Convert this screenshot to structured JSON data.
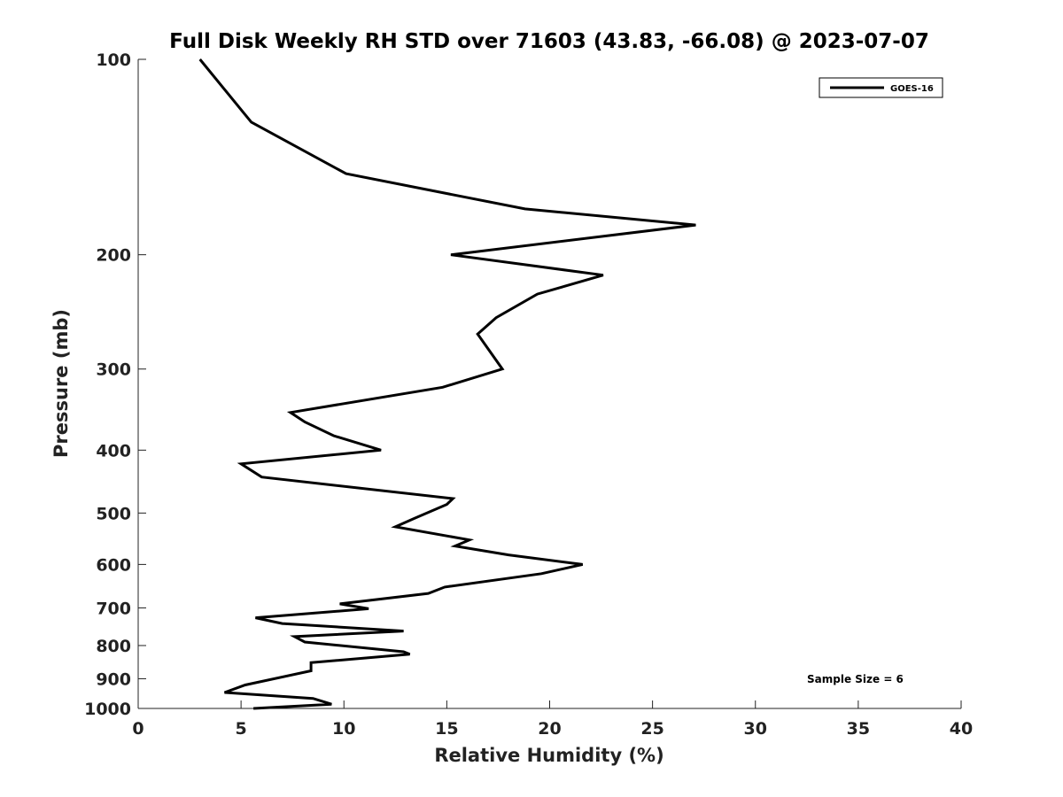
{
  "chart_data": {
    "type": "line",
    "title": "Full Disk Weekly RH STD over 71603 (43.83, -66.08) @ 2023-07-07",
    "xlabel": "Relative Humidity (%)",
    "ylabel": "Pressure (mb)",
    "xlim": [
      0,
      40
    ],
    "ylim": [
      100,
      1000
    ],
    "y_scale": "log",
    "y_reversed": true,
    "x_ticks": [
      0,
      5,
      10,
      15,
      20,
      25,
      30,
      35,
      40
    ],
    "y_ticks": [
      100,
      200,
      300,
      400,
      500,
      600,
      700,
      800,
      900,
      1000
    ],
    "legend_position": "top-right",
    "grid": false,
    "annotation": "Sample Size = 6",
    "series": [
      {
        "name": "GOES-16",
        "color": "#000000",
        "points": [
          [
            3.0,
            100
          ],
          [
            5.5,
            125
          ],
          [
            10.1,
            150
          ],
          [
            18.8,
            170
          ],
          [
            27.1,
            180
          ],
          [
            15.2,
            200
          ],
          [
            22.6,
            215
          ],
          [
            19.4,
            230
          ],
          [
            17.4,
            250
          ],
          [
            16.5,
            265
          ],
          [
            17.7,
            300
          ],
          [
            14.8,
            320
          ],
          [
            7.4,
            350
          ],
          [
            8.1,
            362
          ],
          [
            9.5,
            380
          ],
          [
            11.8,
            400
          ],
          [
            5.0,
            420
          ],
          [
            6.0,
            440
          ],
          [
            15.3,
            475
          ],
          [
            15.0,
            485
          ],
          [
            13.4,
            510
          ],
          [
            12.5,
            525
          ],
          [
            16.1,
            550
          ],
          [
            15.4,
            562
          ],
          [
            18.0,
            580
          ],
          [
            21.6,
            600
          ],
          [
            19.6,
            620
          ],
          [
            14.9,
            650
          ],
          [
            14.1,
            665
          ],
          [
            9.8,
            690
          ],
          [
            11.2,
            702
          ],
          [
            5.7,
            725
          ],
          [
            7.0,
            740
          ],
          [
            12.9,
            760
          ],
          [
            7.6,
            775
          ],
          [
            8.1,
            790
          ],
          [
            12.9,
            818
          ],
          [
            13.2,
            825
          ],
          [
            8.4,
            850
          ],
          [
            8.4,
            875
          ],
          [
            5.2,
            920
          ],
          [
            4.2,
            945
          ],
          [
            8.5,
            965
          ],
          [
            9.4,
            985
          ],
          [
            5.6,
            1000
          ]
        ]
      }
    ]
  }
}
